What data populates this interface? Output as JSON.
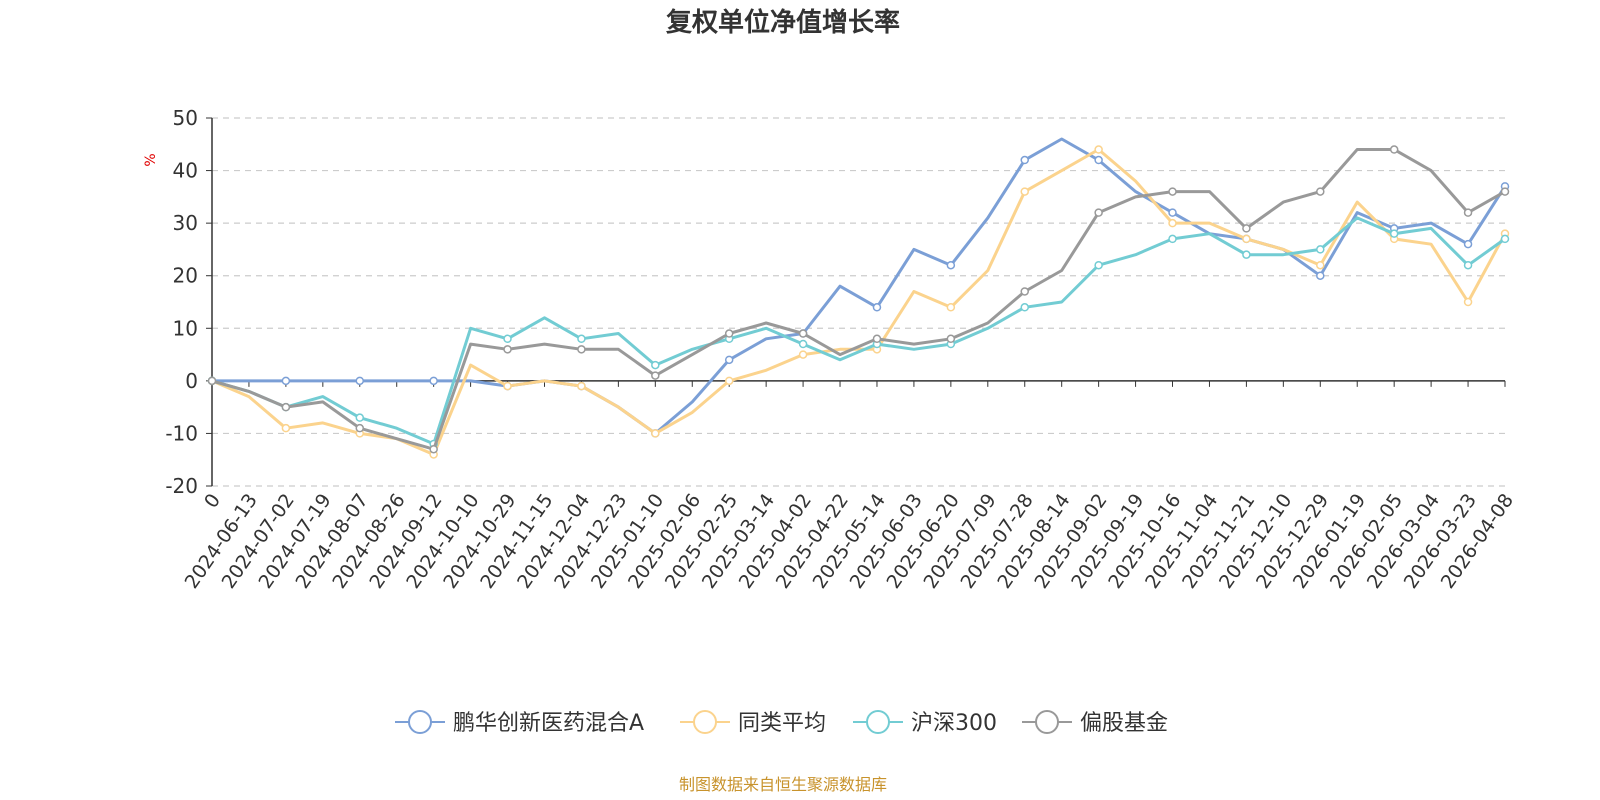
{
  "title": "复权单位净值增长率",
  "source_text": "制图数据来自恒生聚源数据库",
  "colors": {
    "title": "#333333",
    "axis": "#333333",
    "grid": "#cccccc",
    "unit": "#e00000",
    "source": "#c8932c"
  },
  "chart_data": {
    "type": "line",
    "title": "复权单位净值增长率",
    "ylabel": "%",
    "ylim": [
      -20,
      50
    ],
    "yticks": [
      -20,
      -10,
      0,
      10,
      20,
      30,
      40,
      50
    ],
    "grid": "horizontal dashed",
    "legend_position": "bottom-center",
    "x_categories": [
      "0",
      "2024-06-13",
      "2024-07-02",
      "2024-07-19",
      "2024-08-07",
      "2024-08-26",
      "2024-09-12",
      "2024-10-10",
      "2024-10-29",
      "2024-11-15",
      "2024-12-04",
      "2024-12-23",
      "2025-01-10",
      "2025-02-06",
      "2025-02-25",
      "2025-03-14",
      "2025-04-02",
      "2025-04-22",
      "2025-05-14",
      "2025-06-03",
      "2025-06-20",
      "2025-07-09",
      "2025-07-28",
      "2025-08-14",
      "2025-09-02",
      "2025-09-19",
      "2025-10-16",
      "2025-11-04",
      "2025-11-21",
      "2025-12-10",
      "2025-12-29",
      "2026-01-19",
      "2026-02-05",
      "2026-03-04",
      "2026-03-23",
      "2026-04-08"
    ],
    "series": [
      {
        "name": "鹏华创新医药混合A",
        "color": "#7b9fd6",
        "values": [
          0,
          0,
          0,
          0,
          0,
          0,
          0,
          0,
          -1,
          0,
          -1,
          -5,
          -10,
          -4,
          4,
          8,
          9,
          18,
          14,
          25,
          22,
          31,
          42,
          46,
          42,
          36,
          32,
          28,
          27,
          25,
          20,
          32,
          29,
          30,
          26,
          37
        ]
      },
      {
        "name": "同类平均",
        "color": "#fbd38d",
        "values": [
          0,
          -3,
          -9,
          -8,
          -10,
          -11,
          -14,
          3,
          -1,
          0,
          -1,
          -5,
          -10,
          -6,
          0,
          2,
          5,
          6,
          6,
          17,
          14,
          21,
          36,
          40,
          44,
          38,
          30,
          30,
          27,
          25,
          22,
          34,
          27,
          26,
          15,
          28
        ]
      },
      {
        "name": "沪深300",
        "color": "#72ccd3",
        "values": [
          0,
          -2,
          -5,
          -3,
          -7,
          -9,
          -12,
          10,
          8,
          12,
          8,
          9,
          3,
          6,
          8,
          10,
          7,
          4,
          7,
          6,
          7,
          10,
          14,
          15,
          22,
          24,
          27,
          28,
          24,
          24,
          25,
          31,
          28,
          29,
          22,
          27
        ]
      },
      {
        "name": "偏股基金",
        "color": "#999999",
        "values": [
          0,
          -2,
          -5,
          -4,
          -9,
          -11,
          -13,
          7,
          6,
          7,
          6,
          6,
          1,
          5,
          9,
          11,
          9,
          5,
          8,
          7,
          8,
          11,
          17,
          21,
          32,
          35,
          36,
          36,
          29,
          34,
          36,
          44,
          44,
          40,
          32,
          36
        ]
      }
    ]
  }
}
